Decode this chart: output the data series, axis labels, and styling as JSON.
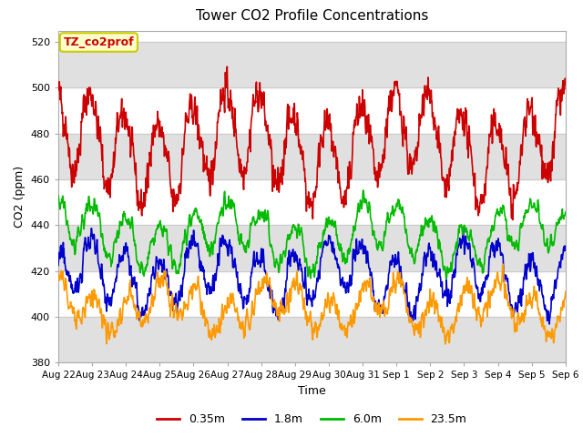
{
  "title": "Tower CO2 Profile Concentrations",
  "xlabel": "Time",
  "ylabel": "CO2 (ppm)",
  "ylim": [
    380,
    525
  ],
  "yticks": [
    380,
    400,
    420,
    440,
    460,
    480,
    500,
    520
  ],
  "legend_label": "TZ_co2prof",
  "series_labels": [
    "0.35m",
    "1.8m",
    "6.0m",
    "23.5m"
  ],
  "series_colors": [
    "#cc0000",
    "#0000cc",
    "#00bb00",
    "#ff9900"
  ],
  "x_tick_labels": [
    "Aug 22",
    "Aug 23",
    "Aug 24",
    "Aug 25",
    "Aug 26",
    "Aug 27",
    "Aug 28",
    "Aug 29",
    "Aug 30",
    "Aug 31",
    "Sep 1",
    "Sep 2",
    "Sep 3",
    "Sep 4",
    "Sep 5",
    "Sep 6"
  ],
  "n_days": 15,
  "pts_per_day": 96,
  "bg_band_color": "#e0e0e0",
  "legend_box_facecolor": "#ffffcc",
  "legend_box_edge": "#cccc00",
  "figsize": [
    6.4,
    4.8
  ],
  "dpi": 100
}
